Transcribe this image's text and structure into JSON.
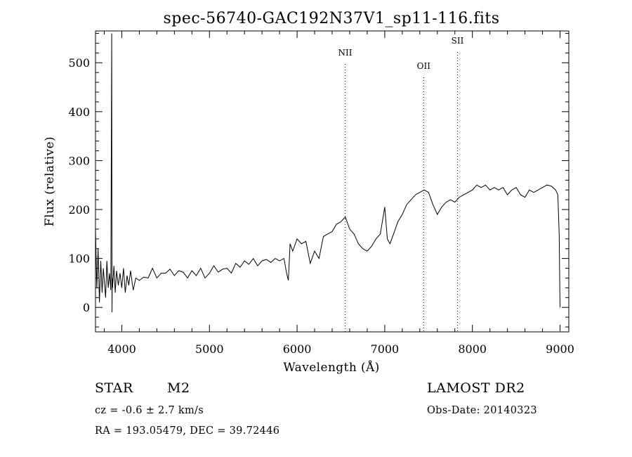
{
  "chart_data": {
    "type": "line",
    "title": "spec-56740-GAC192N37V1_sp11-116.fits",
    "xlabel": "Wavelength (Å)",
    "ylabel": "Flux (relative)",
    "xlim": [
      3700,
      9100
    ],
    "ylim": [
      -50,
      565
    ],
    "x_ticks": [
      4000,
      5000,
      6000,
      7000,
      8000,
      9000
    ],
    "y_ticks": [
      0,
      100,
      200,
      300,
      400,
      500
    ],
    "x_tick_labels": [
      "4000",
      "5000",
      "6000",
      "7000",
      "8000",
      "9000"
    ],
    "y_tick_labels": [
      "0",
      "100",
      "200",
      "300",
      "400",
      "500"
    ],
    "lines": [
      {
        "label": "NII",
        "wavelength": 6548
      },
      {
        "label": "OII",
        "wavelength": 7444
      },
      {
        "label": "SII",
        "wavelength": 7830
      }
    ],
    "series": [
      {
        "name": "flux",
        "x": [
          3700,
          3715,
          3730,
          3745,
          3760,
          3775,
          3790,
          3800,
          3815,
          3830,
          3845,
          3860,
          3875,
          3885,
          3888,
          3891,
          3895,
          3910,
          3925,
          3940,
          3960,
          3980,
          4000,
          4020,
          4040,
          4060,
          4080,
          4100,
          4130,
          4160,
          4200,
          4250,
          4300,
          4350,
          4400,
          4450,
          4500,
          4550,
          4600,
          4650,
          4700,
          4750,
          4800,
          4850,
          4900,
          4950,
          5000,
          5050,
          5100,
          5150,
          5200,
          5250,
          5300,
          5350,
          5400,
          5450,
          5500,
          5550,
          5600,
          5650,
          5700,
          5750,
          5800,
          5850,
          5880,
          5900,
          5920,
          5950,
          6000,
          6050,
          6100,
          6150,
          6200,
          6250,
          6300,
          6350,
          6400,
          6450,
          6500,
          6550,
          6600,
          6650,
          6700,
          6750,
          6800,
          6850,
          6900,
          6950,
          7000,
          7030,
          7060,
          7100,
          7150,
          7200,
          7250,
          7300,
          7350,
          7400,
          7450,
          7500,
          7550,
          7600,
          7650,
          7700,
          7750,
          7800,
          7850,
          7900,
          7950,
          8000,
          8050,
          8100,
          8150,
          8200,
          8250,
          8300,
          8350,
          8400,
          8450,
          8500,
          8550,
          8600,
          8650,
          8700,
          8750,
          8800,
          8850,
          8900,
          8950,
          8975,
          8990,
          9000
        ],
        "values": [
          160,
          40,
          120,
          10,
          95,
          30,
          80,
          55,
          20,
          95,
          40,
          70,
          35,
          560,
          -10,
          60,
          40,
          85,
          30,
          75,
          45,
          70,
          40,
          80,
          30,
          65,
          45,
          75,
          35,
          60,
          55,
          62,
          60,
          80,
          60,
          70,
          70,
          78,
          65,
          75,
          72,
          60,
          75,
          65,
          80,
          60,
          70,
          85,
          72,
          78,
          80,
          70,
          90,
          82,
          95,
          88,
          100,
          85,
          95,
          98,
          92,
          100,
          95,
          100,
          70,
          55,
          130,
          115,
          140,
          130,
          135,
          90,
          115,
          100,
          145,
          150,
          155,
          170,
          175,
          185,
          160,
          150,
          130,
          120,
          115,
          125,
          140,
          150,
          205,
          140,
          130,
          150,
          175,
          190,
          210,
          220,
          230,
          235,
          240,
          235,
          210,
          190,
          205,
          215,
          220,
          215,
          225,
          230,
          235,
          240,
          250,
          245,
          250,
          240,
          245,
          240,
          245,
          230,
          240,
          245,
          230,
          225,
          240,
          235,
          240,
          245,
          250,
          248,
          240,
          230,
          150,
          0
        ]
      }
    ]
  },
  "info": {
    "obj_class": "STAR",
    "subclass": "M2",
    "survey": "LAMOST DR2",
    "cz": "cz = -0.6 ± 2.7 km/s",
    "obs_date": "Obs-Date: 20140323",
    "coords": "RA = 193.05479, DEC =  39.72446"
  }
}
